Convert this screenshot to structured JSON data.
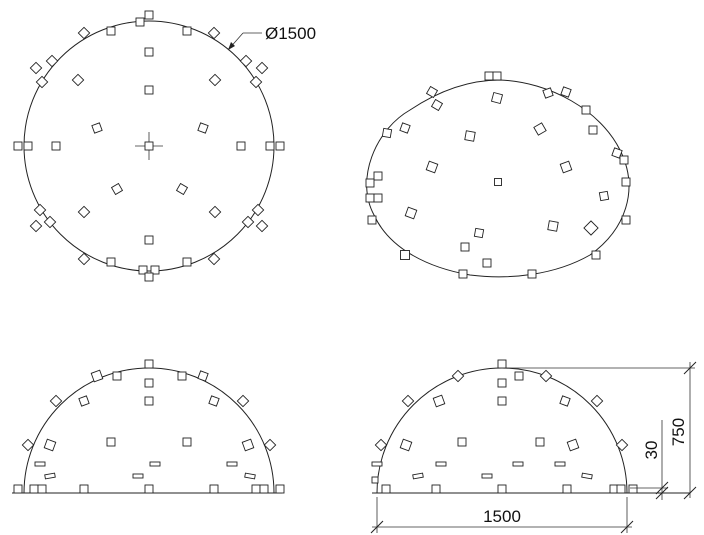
{
  "views": {
    "top": {
      "name": "top-view",
      "diameter_label": "Ø1500"
    },
    "iso": {
      "name": "isometric-view"
    },
    "front": {
      "name": "front-elevation-view"
    },
    "side": {
      "name": "side-elevation-view"
    }
  },
  "dimensions": {
    "width": "1500",
    "height": "750",
    "offset": "30"
  },
  "colors": {
    "line": "#222222",
    "background": "#ffffff"
  }
}
